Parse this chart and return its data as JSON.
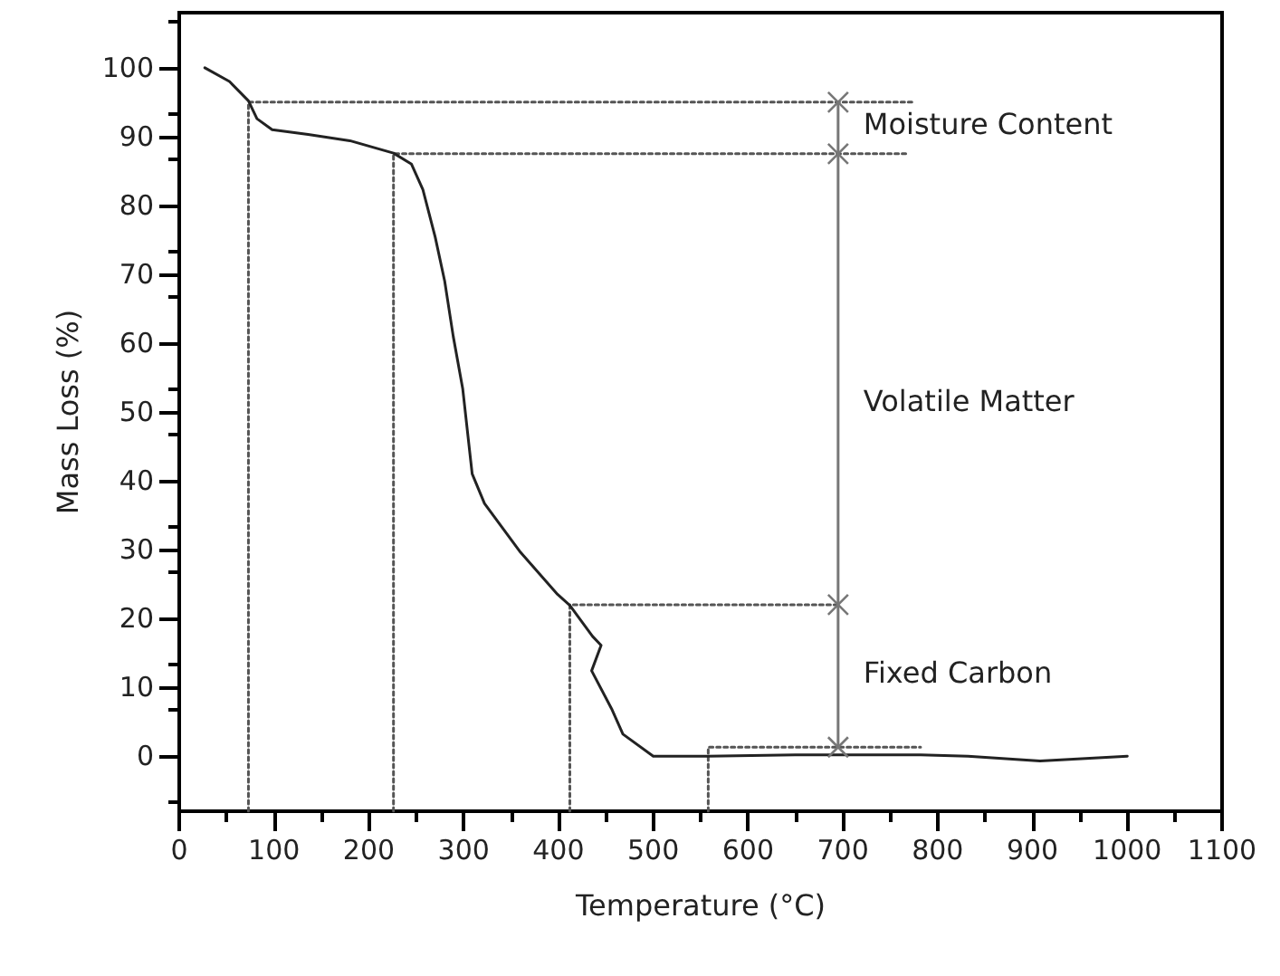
{
  "chart_data": {
    "type": "line",
    "xlabel": "Temperature (°C)",
    "ylabel": "Mass Loss (%)",
    "xlim": [
      0,
      1100
    ],
    "xticks": [
      0,
      100,
      200,
      300,
      400,
      500,
      600,
      700,
      800,
      900,
      1000,
      1100
    ],
    "ylim": [
      -8,
      108
    ],
    "yticks": [
      0,
      10,
      20,
      30,
      40,
      50,
      60,
      70,
      80,
      90,
      100
    ],
    "grid": false,
    "marker": "none",
    "series": [
      {
        "color": "#222222",
        "line_style": "solid",
        "x": [
          27,
          53,
          73,
          82,
          98,
          136,
          180,
          226,
          245,
          257,
          270,
          280,
          289,
          299,
          309,
          322,
          360,
          399,
          412,
          436,
          445,
          435,
          456,
          468,
          500,
          557,
          650,
          782,
          832,
          908,
          1000
        ],
        "values": [
          100,
          98,
          95.2,
          92.6,
          91,
          90.3,
          89.4,
          87.6,
          86,
          82.3,
          75.4,
          69,
          61,
          53.4,
          41,
          36.7,
          29.6,
          23.5,
          21.9,
          17.4,
          16.1,
          12.4,
          6.9,
          3.2,
          0,
          0,
          0.2,
          0.2,
          0,
          -0.7,
          0
        ]
      },
      {
        "color": "#555555",
        "line_style": "dotted",
        "x": [
          73,
          73,
          776
        ],
        "values": [
          -8,
          95,
          95
        ]
      },
      {
        "color": "#555555",
        "line_style": "dotted",
        "x": [
          226,
          226,
          768
        ],
        "values": [
          -8,
          87.5,
          87.5
        ]
      },
      {
        "color": "#555555",
        "line_style": "dotted",
        "x": [
          412,
          412,
          695
        ],
        "values": [
          -8,
          22,
          22
        ]
      },
      {
        "color": "#555555",
        "line_style": "dotted",
        "x": [
          558,
          558,
          782
        ],
        "values": [
          -8,
          1.3,
          1.3
        ]
      },
      {
        "color": "#777777",
        "line_style": "solid",
        "marker": "cross",
        "x": [
          695,
          695,
          695,
          695
        ],
        "values": [
          95,
          87.5,
          22,
          1.3
        ]
      }
    ],
    "annotations": [
      "Moisture Content",
      "Volatile Matter",
      "Fixed Carbon"
    ]
  }
}
